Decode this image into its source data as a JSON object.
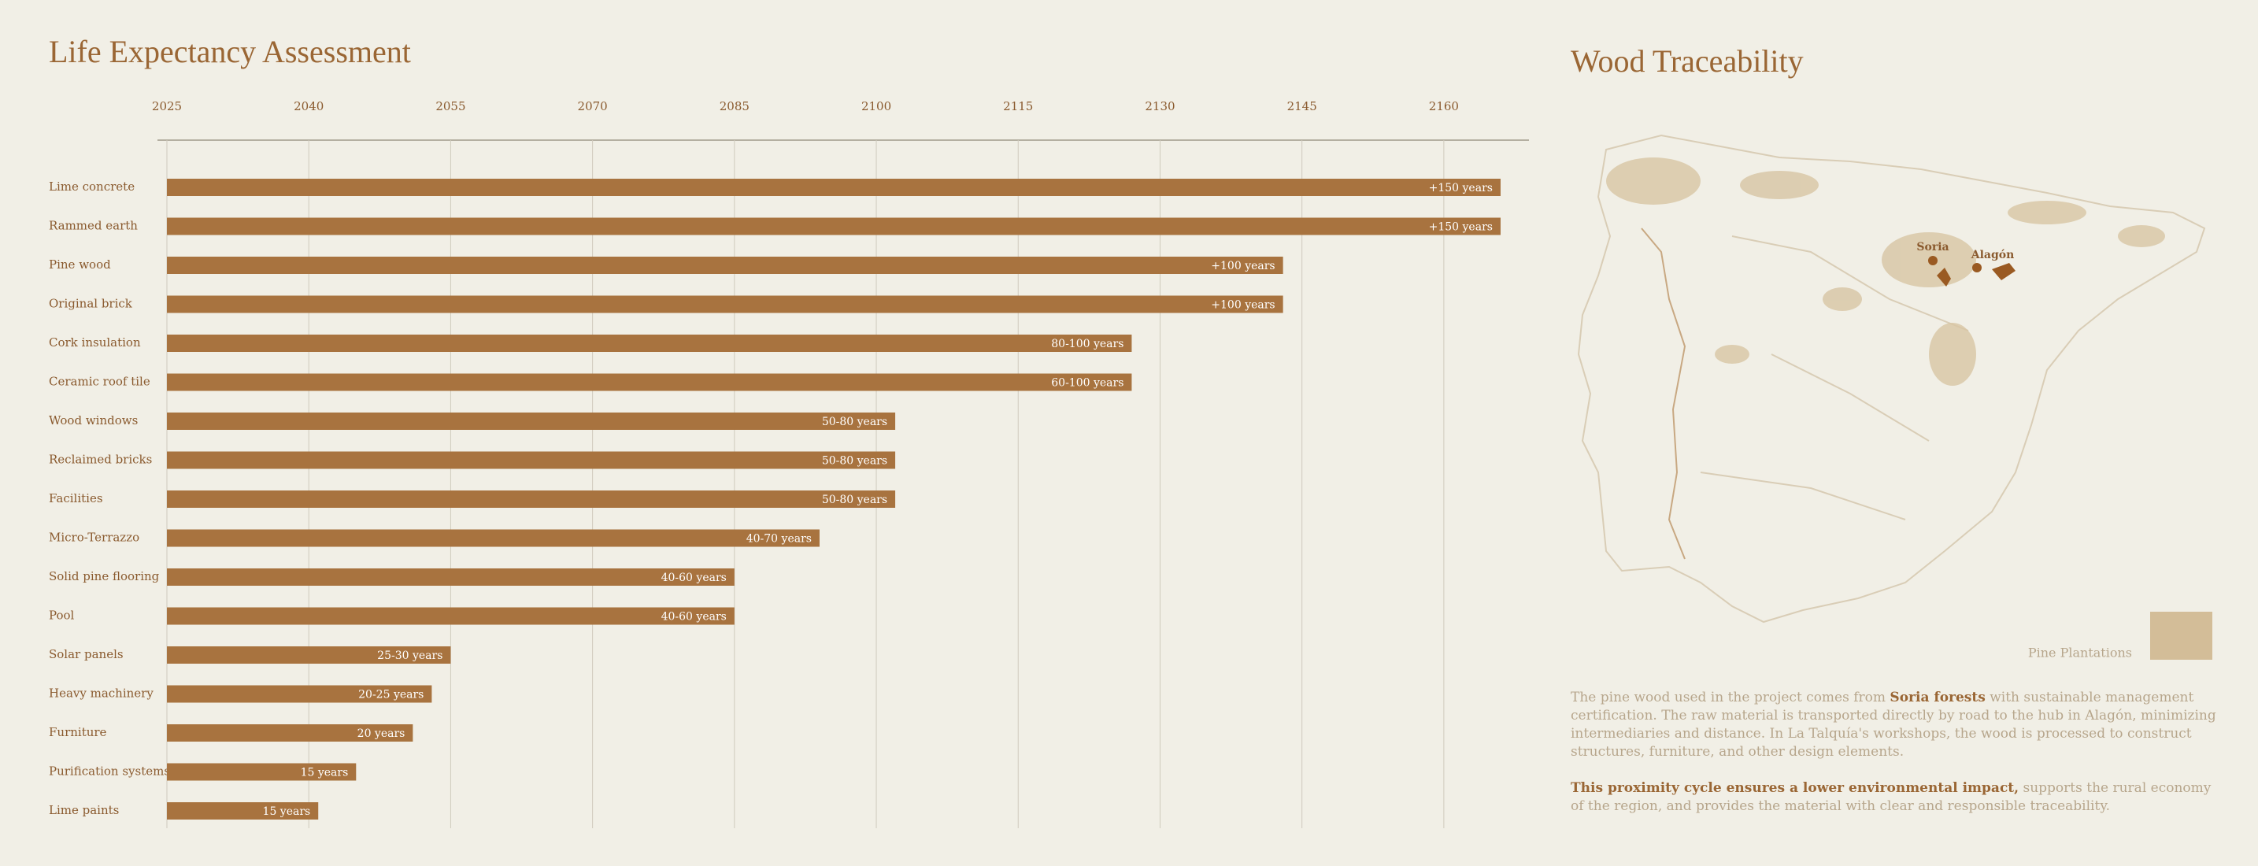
{
  "chart_data": {
    "type": "hbar",
    "title": "Life Expectancy Assessment",
    "categories": [
      "Lime concrete",
      "Rammed earth",
      "Pine wood",
      "Original brick",
      "Cork insulation",
      "Ceramic roof tile",
      "Wood windows",
      "Reclaimed bricks",
      "Facilities",
      "Micro-Terrazzo",
      "Solid pine flooring",
      "Pool",
      "Solar panels",
      "Heavy machinery",
      "Furniture",
      "Purification systems",
      "Lime paints"
    ],
    "values": [
      2166,
      2166,
      2143,
      2143,
      2127,
      2127,
      2102,
      2102,
      2102,
      2094,
      2085,
      2085,
      2055,
      2053,
      2051,
      2045,
      2041
    ],
    "labels": [
      "+150 years",
      "+150 years",
      "+100 years",
      "+100 years",
      "80-100 years",
      "60-100 years",
      "50-80 years",
      "50-80 years",
      "50-80 years",
      "40-70 years",
      "40-60 years",
      "40-60 years",
      "25-30 years",
      "20-25 years",
      "20 years",
      "15 years",
      "15 years"
    ],
    "color": "#a8733f",
    "xlim": [
      2025,
      2169
    ],
    "xticks": [
      2025,
      2040,
      2055,
      2070,
      2085,
      2100,
      2115,
      2130,
      2145,
      2160
    ],
    "grid": true
  },
  "map": {
    "title": "Wood Traceability",
    "places": [
      "Soria",
      "Alagón"
    ],
    "legend": "Pine Plantations",
    "description": [
      {
        "segments": [
          {
            "text": "The pine wood used in the project comes from ",
            "bold": false
          },
          {
            "text": "Soria forests",
            "bold": true
          },
          {
            "text": " with sustainable management certification. The raw material is transported directly by road to the hub in Alagón, minimizing intermediaries and distance. In La Talquía's workshops, the wood is processed to construct structures, furniture, and other design elements.",
            "bold": false
          }
        ]
      },
      {
        "segments": [
          {
            "text": "This proximity cycle ensures a lower environmental impact,",
            "bold": true
          },
          {
            "text": " supports the rural economy of the region, and provides the material with clear and responsible traceability.",
            "bold": false
          }
        ]
      }
    ]
  }
}
